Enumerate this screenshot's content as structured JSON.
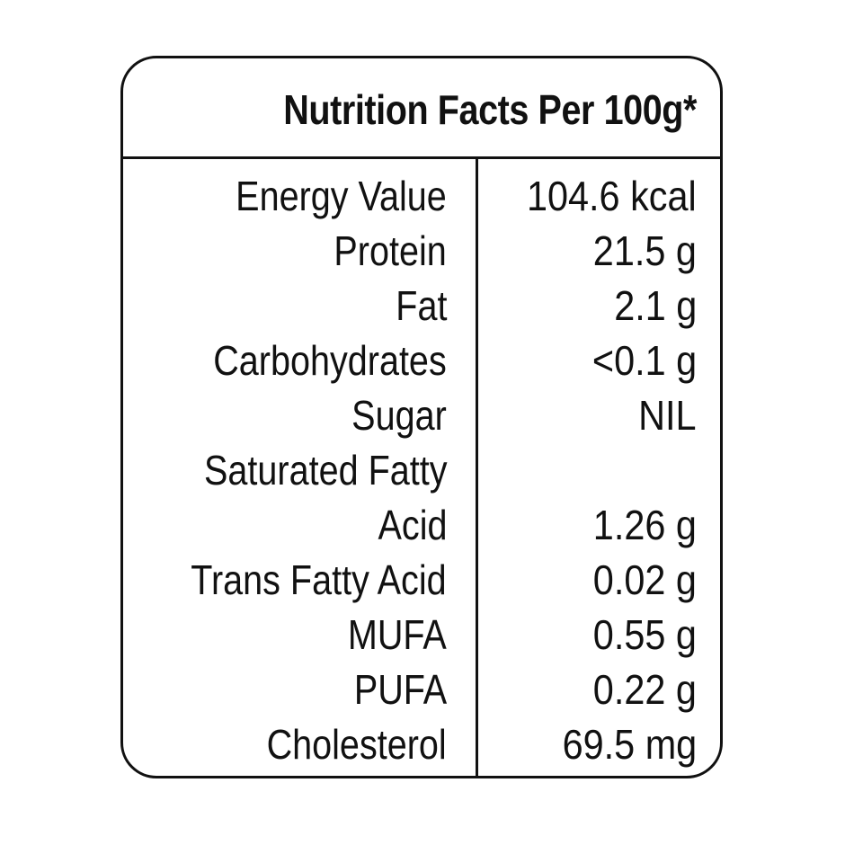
{
  "panel": {
    "title": "Nutrition Facts Per 100g*"
  },
  "rows": [
    {
      "label": "Energy Value",
      "value": "104.6 kcal"
    },
    {
      "label": "Protein",
      "value": "21.5 g"
    },
    {
      "label": "Fat",
      "value": "2.1 g"
    },
    {
      "label": "Carbohydrates",
      "value": "<0.1 g"
    },
    {
      "label": "Sugar",
      "value": "NIL"
    },
    {
      "label": "Saturated Fatty",
      "value": ""
    },
    {
      "label": "Acid",
      "value": "1.26 g"
    },
    {
      "label": "Trans Fatty Acid",
      "value": "0.02 g"
    },
    {
      "label": "MUFA",
      "value": "0.55 g"
    },
    {
      "label": "PUFA",
      "value": "0.22 g"
    },
    {
      "label": "Cholesterol",
      "value": "69.5 mg"
    }
  ]
}
